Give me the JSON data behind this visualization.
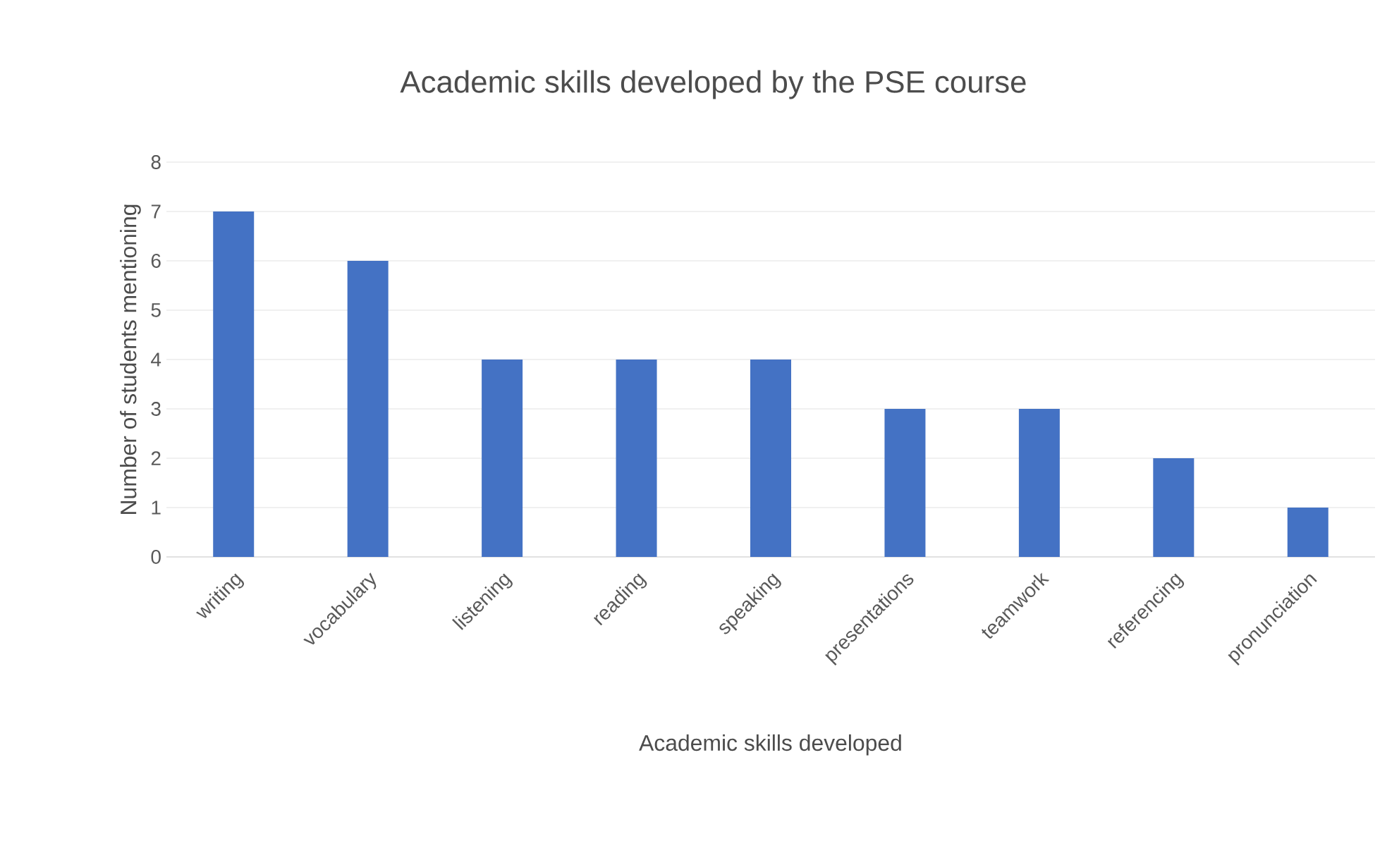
{
  "chart_data": {
    "type": "bar",
    "title": "Academic skills developed by the PSE course",
    "xlabel": "Academic skills developed",
    "ylabel": "Number of students mentioning",
    "categories": [
      "writing",
      "vocabulary",
      "listening",
      "reading",
      "speaking",
      "presentations",
      "teamwork",
      "referencing",
      "pronunciation"
    ],
    "values": [
      7,
      6,
      4,
      4,
      4,
      3,
      3,
      2,
      1
    ],
    "color": "#4472c4",
    "ylim": [
      0,
      8
    ],
    "yticks": [
      0,
      1,
      2,
      3,
      4,
      5,
      6,
      7,
      8
    ],
    "grid": "y"
  }
}
